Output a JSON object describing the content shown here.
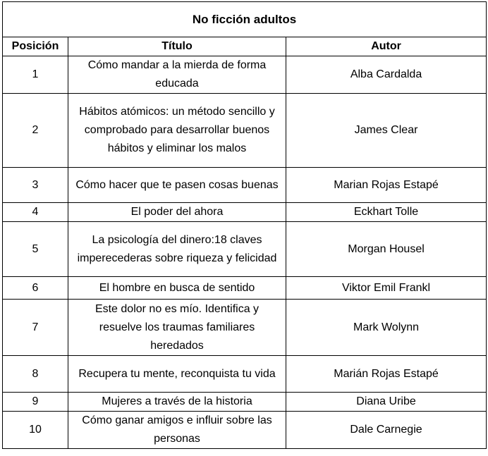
{
  "table": {
    "title": "No ficción adultos",
    "headers": [
      "Posición",
      "Título",
      "Autor"
    ],
    "rows": [
      {
        "pos": "1",
        "title": "Cómo mandar a la mierda de forma educada",
        "author": "Alba Cardalda"
      },
      {
        "pos": "2",
        "title": "Hábitos atómicos: un método sencillo y comprobado para desarrollar buenos hábitos y eliminar los malos",
        "author": "James Clear"
      },
      {
        "pos": "3",
        "title": "Cómo hacer que te pasen cosas buenas",
        "author": "Marian Rojas Estapé"
      },
      {
        "pos": "4",
        "title": "El poder del ahora",
        "author": "Eckhart Tolle"
      },
      {
        "pos": "5",
        "title": "La psicología del dinero:18 claves imperecederas sobre riqueza y felicidad",
        "author": "Morgan Housel"
      },
      {
        "pos": "6",
        "title": "El hombre en busca de sentido",
        "author": "Viktor Emil Frankl"
      },
      {
        "pos": "7",
        "title": "Este dolor no es mío. Identifica y resuelve los traumas familiares heredados",
        "author": "Mark Wolynn"
      },
      {
        "pos": "8",
        "title": "Recupera tu mente, reconquista tu vida",
        "author": "Marián Rojas Estapé"
      },
      {
        "pos": "9",
        "title": "Mujeres a través de la historia",
        "author": "Diana Uribe"
      },
      {
        "pos": "10",
        "title": "Cómo ganar amigos e influir sobre las personas",
        "author": "Dale Carnegie"
      }
    ]
  }
}
